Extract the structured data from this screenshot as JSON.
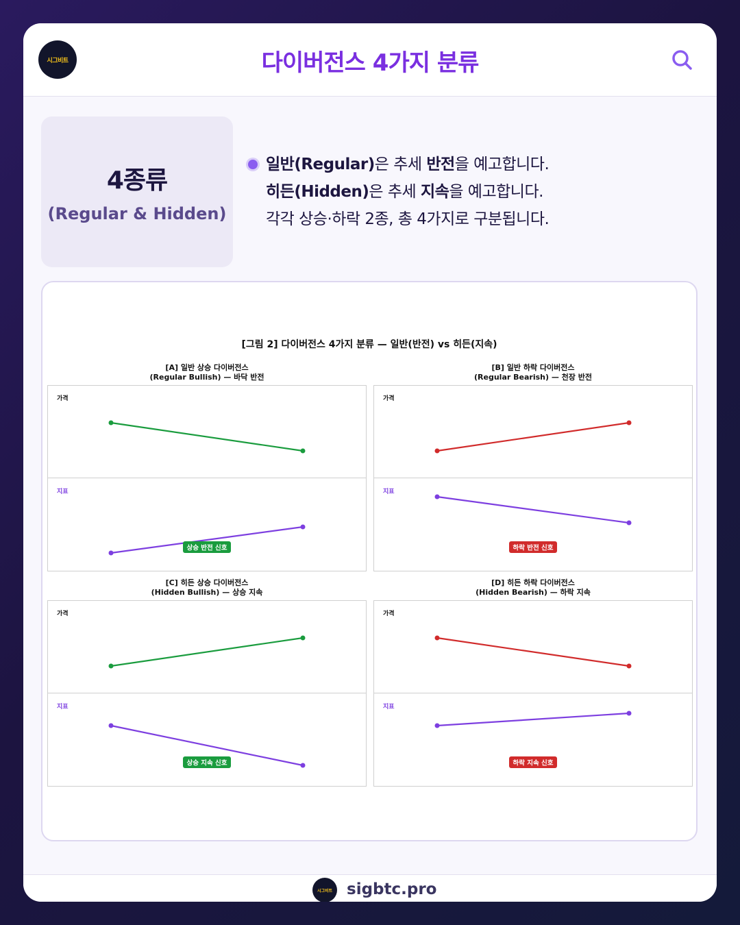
{
  "header": {
    "logo_text": "시그비트",
    "title": "다이버전스 4가지 분류",
    "search_icon": "search-icon"
  },
  "summary": {
    "main": "4종류",
    "sub": "(Regular & Hidden)"
  },
  "description": {
    "line1": {
      "bold1": "일반(Regular)",
      "text1": "은 추세 ",
      "bold2": "반전",
      "text2": "을 예고합니다."
    },
    "line2": {
      "bold1": "히든(Hidden)",
      "text1": "은 추세 ",
      "bold2": "지속",
      "text2": "을 예고합니다."
    },
    "line3": "각각 상승·하락 2종, 총 4가지로 구분됩니다."
  },
  "colors": {
    "accent": "#7a2fe0",
    "bullish": "#1a9c3e",
    "bearish": "#d12b2b",
    "indicator": "#7d3fe0"
  },
  "chart_data": {
    "type": "line",
    "title": "[그림 2] 다이버전스 4가지 분류 — 일반(반전) vs 히든(지속)",
    "price_label": "가격",
    "indicator_label": "지표",
    "panels": [
      {
        "title_line1": "[A] 일반 상승 다이버전스",
        "title_line2": "(Regular Bullish) — 바닥 반전",
        "kind": "bullish",
        "price": [
          2,
          1
        ],
        "indicator": [
          1,
          2
        ],
        "signal": "상승 반전 신호"
      },
      {
        "title_line1": "[B] 일반 하락 다이버전스",
        "title_line2": "(Regular Bearish) — 천장 반전",
        "kind": "bearish",
        "price": [
          1,
          2
        ],
        "indicator": [
          2,
          1
        ],
        "signal": "하락 반전 신호"
      },
      {
        "title_line1": "[C] 히든 상승 다이버전스",
        "title_line2": "(Hidden Bullish) — 상승 지속",
        "kind": "bullish",
        "price": [
          1,
          2
        ],
        "indicator": [
          2,
          1
        ],
        "signal": "상승 지속 신호"
      },
      {
        "title_line1": "[D] 히든 하락 다이버전스",
        "title_line2": "(Hidden Bearish) — 하락 지속",
        "kind": "bearish",
        "price": [
          2,
          1
        ],
        "indicator": [
          1,
          2
        ],
        "signal": "하락 지속 신호"
      }
    ]
  },
  "footer": {
    "logo_text": "시그비트",
    "site": "sigbtc.pro"
  }
}
